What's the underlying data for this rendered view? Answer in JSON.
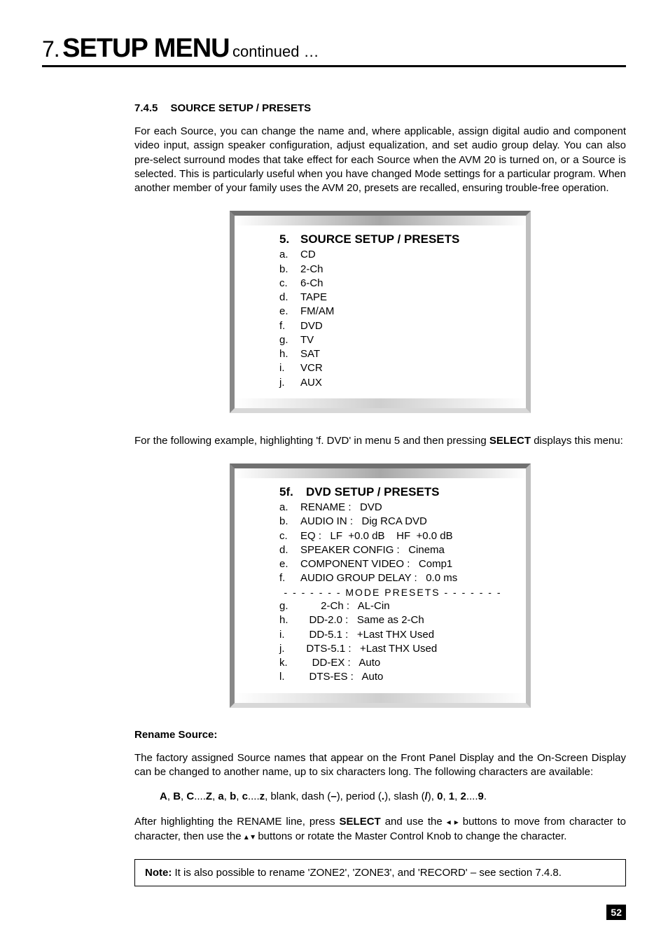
{
  "chapter": {
    "number": "7.",
    "title": "SETUP MENU",
    "continued": "continued …"
  },
  "section": {
    "number": "7.4.5",
    "title": "SOURCE SETUP / PRESETS"
  },
  "intro_paragraph": "For each Source, you can change the name and, where applicable, assign digital audio and component video input, assign speaker configuration, adjust equalization, and set audio group delay. You can also pre-select surround modes that take effect for each Source when the AVM 20 is turned on, or a Source is selected. This is particularly useful when you have changed Mode settings for a particular program. When another member of your family uses the AVM 20, presets are recalled, ensuring trouble-free operation.",
  "panel1": {
    "title_key": "5.",
    "title_val": "SOURCE SETUP / PRESETS",
    "rows": [
      {
        "k": "a.",
        "v": "CD"
      },
      {
        "k": "b.",
        "v": "2-Ch"
      },
      {
        "k": "c.",
        "v": "6-Ch"
      },
      {
        "k": "d.",
        "v": "TAPE"
      },
      {
        "k": "e.",
        "v": "FM/AM"
      },
      {
        "k": "f.",
        "v": "DVD"
      },
      {
        "k": "g.",
        "v": "TV"
      },
      {
        "k": "h.",
        "v": "SAT"
      },
      {
        "k": "i.",
        "v": "VCR"
      },
      {
        "k": "j.",
        "v": "AUX"
      }
    ]
  },
  "mid_text_pre": "For the following example, highlighting 'f. DVD' in menu 5 and then pressing ",
  "mid_text_bold": "SELECT",
  "mid_text_post": " displays this menu:",
  "panel2": {
    "title_key": "5f.",
    "title_val": "DVD SETUP / PRESETS",
    "rows_top": [
      {
        "k": "a.",
        "v": "RENAME :   DVD"
      },
      {
        "k": "b.",
        "v": "AUDIO IN :   Dig RCA DVD"
      },
      {
        "k": "c.",
        "v": "EQ :   LF  +0.0 dB    HF  +0.0 dB"
      },
      {
        "k": "d.",
        "v": "SPEAKER CONFIG :   Cinema"
      },
      {
        "k": "e.",
        "v": "COMPONENT VIDEO :   Comp1"
      },
      {
        "k": "f.",
        "v": "AUDIO GROUP DELAY :   0.0 ms"
      }
    ],
    "separator": "-  -  -  -  -  -  -   MODE PRESETS  -  -  -  -  -  -  -",
    "rows_bottom": [
      {
        "k": "g.",
        "v": "       2-Ch :   AL-Cin"
      },
      {
        "k": "h.",
        "v": "   DD-2.0 :   Same as 2-Ch"
      },
      {
        "k": "i.",
        "v": "   DD-5.1 :   +Last THX Used"
      },
      {
        "k": "j.",
        "v": "  DTS-5.1 :   +Last THX Used"
      },
      {
        "k": "k.",
        "v": "    DD-EX :   Auto"
      },
      {
        "k": "l.",
        "v": "   DTS-ES :   Auto"
      }
    ]
  },
  "rename": {
    "heading": "Rename Source:",
    "para": "The factory assigned Source names that appear on the Front Panel Display and the On-Screen Display can be changed to another name, up to six characters long. The following characters are available:"
  },
  "charset_spans": [
    {
      "t": "A",
      "b": true
    },
    {
      "t": ", "
    },
    {
      "t": "B",
      "b": true
    },
    {
      "t": ", "
    },
    {
      "t": "C",
      "b": true
    },
    {
      "t": "...."
    },
    {
      "t": "Z",
      "b": true
    },
    {
      "t": ", "
    },
    {
      "t": "a",
      "b": true
    },
    {
      "t": ", "
    },
    {
      "t": "b",
      "b": true
    },
    {
      "t": ", "
    },
    {
      "t": "c",
      "b": true
    },
    {
      "t": "...."
    },
    {
      "t": "z",
      "b": true
    },
    {
      "t": ", blank, dash ("
    },
    {
      "t": "–",
      "b": true
    },
    {
      "t": "), period ("
    },
    {
      "t": ".",
      "b": true
    },
    {
      "t": "), slash ("
    },
    {
      "t": "/",
      "b": true
    },
    {
      "t": "), "
    },
    {
      "t": "0",
      "b": true
    },
    {
      "t": ", "
    },
    {
      "t": "1",
      "b": true
    },
    {
      "t": ", "
    },
    {
      "t": "2",
      "b": true
    },
    {
      "t": "...."
    },
    {
      "t": "9",
      "b": true
    },
    {
      "t": "."
    }
  ],
  "after_para_1a": "After highlighting the RENAME line, press ",
  "after_para_1b": "SELECT",
  "after_para_1c": " and use the ",
  "after_para_1d": " buttons to move from character to character, then use the ",
  "after_para_1e": " buttons or rotate the Master Control Knob to change the character.",
  "note_bold": "Note:",
  "note_text": "  It is also possible to rename 'ZONE2', 'ZONE3', and 'RECORD' – see section 7.4.8.",
  "page_number": "52",
  "colors": {
    "text": "#000000",
    "background": "#ffffff",
    "bevel_dark": "#707070",
    "bevel_light": "#d8d8d8",
    "page_num_bg": "#000000",
    "page_num_fg": "#ffffff"
  },
  "typography": {
    "body_size_pt": 11,
    "heading_size_pt": 11,
    "panel_title_size_pt": 13,
    "chapter_title_size_pt": 28
  }
}
